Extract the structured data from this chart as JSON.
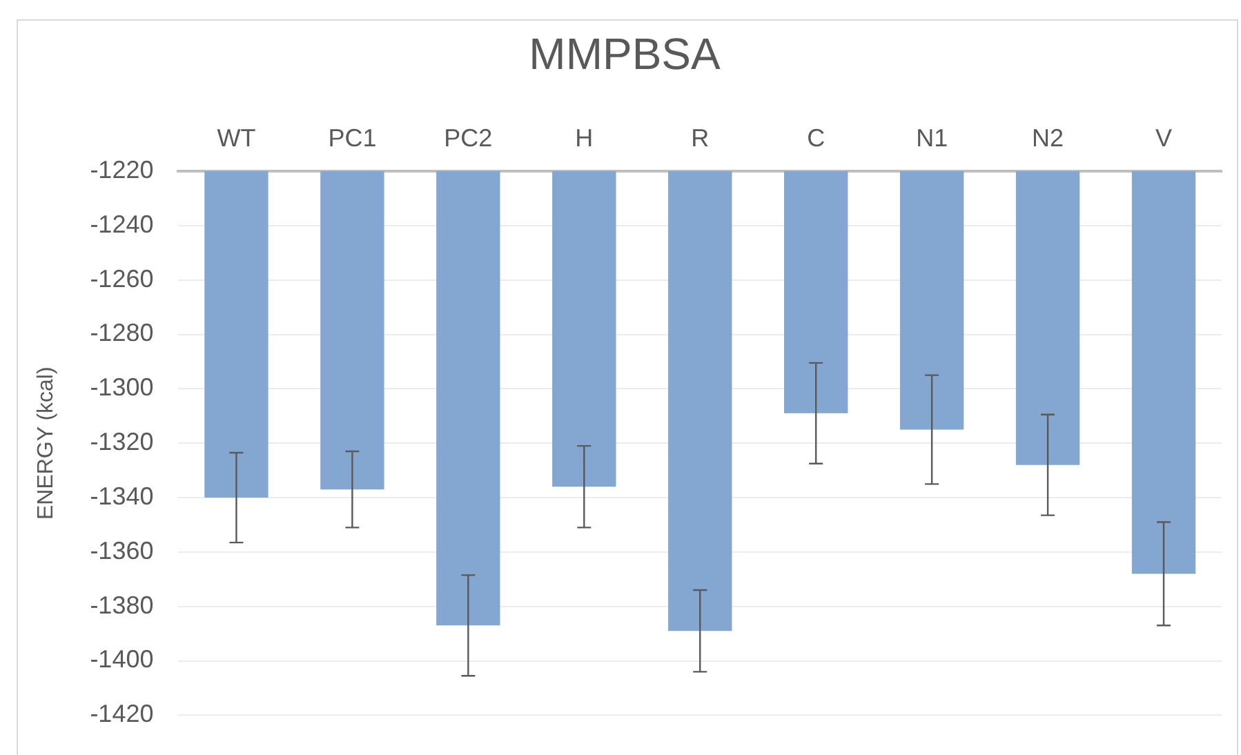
{
  "chart_data": {
    "type": "bar",
    "title": "MMPBSA",
    "ylabel": "ENERGY (kcal)",
    "categories": [
      "WT",
      "PC1",
      "PC2",
      "H",
      "R",
      "C",
      "N1",
      "N2",
      "V"
    ],
    "values": [
      -1340,
      -1337,
      -1387,
      -1336,
      -1389,
      -1309,
      -1315,
      -1328,
      -1368
    ],
    "errors": [
      16.5,
      14,
      18.5,
      15,
      15,
      18.5,
      20,
      18.5,
      19
    ],
    "color": "#84a7d1",
    "ylim": [
      -1420,
      -1220
    ],
    "yticks": [
      -1420,
      -1400,
      -1380,
      -1360,
      -1340,
      -1320,
      -1300,
      -1280,
      -1260,
      -1240,
      -1220
    ],
    "grid": "y",
    "legend": false
  }
}
